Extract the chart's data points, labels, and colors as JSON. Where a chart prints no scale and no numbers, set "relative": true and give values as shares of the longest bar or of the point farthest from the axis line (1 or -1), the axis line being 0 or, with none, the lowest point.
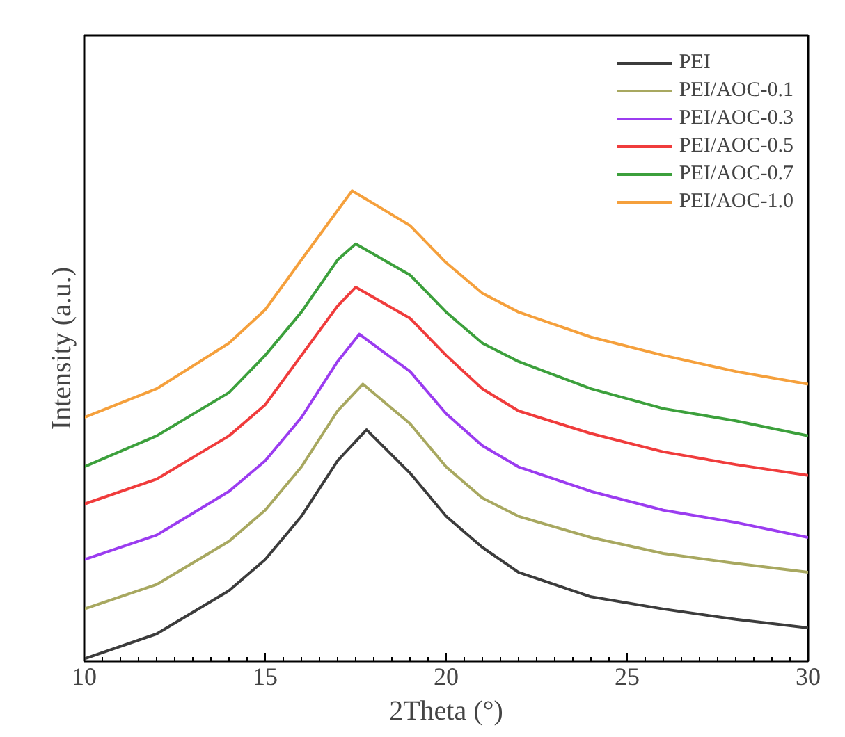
{
  "chart_data": {
    "type": "line",
    "relative": true,
    "xlabel": "2Theta (°)",
    "ylabel": "Intensity (a.u.)",
    "xlim": [
      10,
      30
    ],
    "xticks": [
      10,
      15,
      20,
      25,
      30
    ],
    "grid": false,
    "legend": "top right",
    "line_style": "solid",
    "marker": "none",
    "tick_labels": "x",
    "series": [
      {
        "name": "PEI",
        "color": "#3c3c3c",
        "x": [
          10,
          12,
          14,
          15,
          16,
          17,
          17.8,
          19,
          20,
          21,
          22,
          24,
          26,
          28,
          30
        ],
        "values": [
          0.005,
          0.058,
          0.15,
          0.216,
          0.308,
          0.426,
          0.492,
          0.4,
          0.308,
          0.242,
          0.189,
          0.137,
          0.111,
          0.089,
          0.071
        ]
      },
      {
        "name": "PEI/AOC-0.1",
        "color": "#a8a860",
        "x": [
          10,
          12,
          14,
          15,
          16,
          17,
          17.7,
          19,
          20,
          21,
          22,
          24,
          26,
          28,
          30
        ],
        "values": [
          0.111,
          0.163,
          0.255,
          0.321,
          0.413,
          0.532,
          0.589,
          0.505,
          0.413,
          0.347,
          0.308,
          0.263,
          0.229,
          0.208,
          0.189
        ]
      },
      {
        "name": "PEI/AOC-0.3",
        "color": "#9b3cf0",
        "x": [
          10,
          12,
          14,
          15,
          16,
          17,
          17.6,
          19,
          20,
          21,
          22,
          24,
          26,
          28,
          30
        ],
        "values": [
          0.216,
          0.268,
          0.361,
          0.426,
          0.518,
          0.637,
          0.695,
          0.616,
          0.526,
          0.458,
          0.413,
          0.361,
          0.321,
          0.295,
          0.263
        ]
      },
      {
        "name": "PEI/AOC-0.5",
        "color": "#f03c3c",
        "x": [
          10,
          12,
          14,
          15,
          16,
          17,
          17.5,
          19,
          20,
          21,
          22,
          24,
          26,
          28,
          30
        ],
        "values": [
          0.334,
          0.387,
          0.479,
          0.545,
          0.65,
          0.755,
          0.795,
          0.729,
          0.65,
          0.579,
          0.532,
          0.484,
          0.445,
          0.418,
          0.395
        ]
      },
      {
        "name": "PEI/AOC-0.7",
        "color": "#3ca03c",
        "x": [
          10,
          12,
          14,
          15,
          16,
          17,
          17.5,
          19,
          20,
          21,
          22,
          24,
          26,
          28,
          30
        ],
        "values": [
          0.413,
          0.479,
          0.571,
          0.65,
          0.742,
          0.853,
          0.887,
          0.821,
          0.742,
          0.676,
          0.637,
          0.579,
          0.537,
          0.511,
          0.479
        ]
      },
      {
        "name": "PEI/AOC-1.0",
        "color": "#f5a03c",
        "x": [
          10,
          12,
          14,
          15,
          16,
          17,
          17.4,
          19,
          20,
          21,
          22,
          24,
          26,
          28,
          30
        ],
        "values": [
          0.518,
          0.579,
          0.676,
          0.747,
          0.853,
          0.958,
          1,
          0.926,
          0.847,
          0.782,
          0.742,
          0.689,
          0.65,
          0.616,
          0.589
        ]
      }
    ]
  }
}
